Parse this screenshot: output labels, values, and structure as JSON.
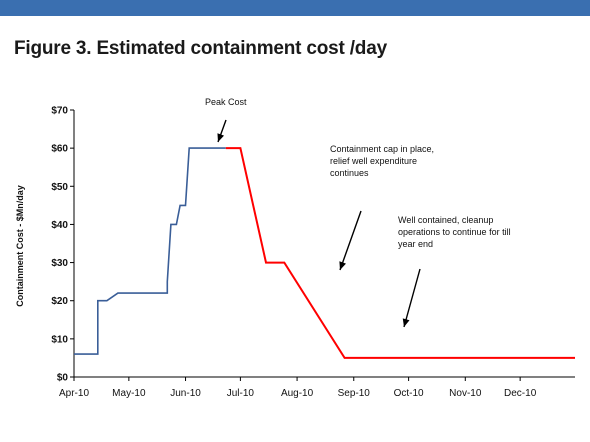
{
  "figure_title": "Figure 3. Estimated containment cost /day",
  "colors": {
    "header_bar": "#3a6fb0",
    "pre_peak": "#3a5e98",
    "post_peak": "#ff0000"
  },
  "chart_data": {
    "type": "line",
    "title": "Figure 3. Estimated containment cost /day",
    "xlabel": "",
    "ylabel": "Containment Cost - $Mn/day",
    "x_ticks": [
      "Apr-10",
      "May-10",
      "Jun-10",
      "Jul-10",
      "Aug-10",
      "Sep-10",
      "Oct-10",
      "Nov-10",
      "Dec-10"
    ],
    "y_ticks": [
      "$0",
      "$10",
      "$20",
      "$30",
      "$40",
      "$50",
      "$60",
      "$70"
    ],
    "ylim": [
      0,
      70
    ],
    "xlim": [
      "2010-04-01",
      "2010-12-31"
    ],
    "grid": false,
    "legend": "none",
    "series": [
      {
        "color": "#3a5e98",
        "points": [
          [
            "2010-04-01",
            6
          ],
          [
            "2010-04-14",
            6
          ],
          [
            "2010-04-14",
            20
          ],
          [
            "2010-04-19",
            20
          ],
          [
            "2010-04-25",
            22
          ],
          [
            "2010-05-22",
            22
          ],
          [
            "2010-05-22",
            25
          ],
          [
            "2010-05-24",
            40
          ],
          [
            "2010-05-27",
            40
          ],
          [
            "2010-05-29",
            45
          ],
          [
            "2010-06-01",
            45
          ],
          [
            "2010-06-03",
            60
          ],
          [
            "2010-06-23",
            60
          ]
        ]
      },
      {
        "color": "#ff0000",
        "points": [
          [
            "2010-06-23",
            60
          ],
          [
            "2010-07-01",
            60
          ],
          [
            "2010-07-15",
            30
          ],
          [
            "2010-07-25",
            30
          ],
          [
            "2010-08-27",
            5
          ],
          [
            "2010-12-31",
            5
          ]
        ]
      }
    ],
    "annotations": [
      {
        "text": "Peak Cost"
      },
      {
        "text": "Containment cap in place,\nrelief well expenditure\ncontinues"
      },
      {
        "text": "Well contained, cleanup\noperations to continue for till\nyear end"
      }
    ]
  }
}
